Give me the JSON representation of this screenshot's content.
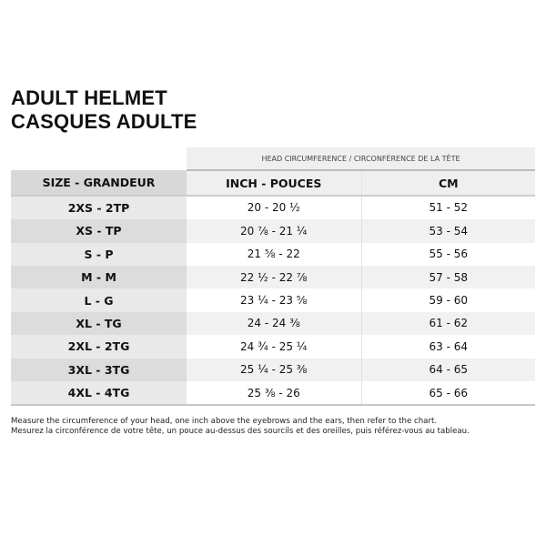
{
  "title": {
    "line1": "ADULT HELMET",
    "line2": "CASQUES ADULTE"
  },
  "table": {
    "group_header": "HEAD CIRCUMFERENCE / CIRCONFÉRENCE DE LA TÊTE",
    "headers": [
      "SIZE - GRANDEUR",
      "INCH - POUCES",
      "CM"
    ],
    "rows": [
      [
        "2XS - 2TP",
        "20 - 20 ½",
        "51 - 52"
      ],
      [
        "XS - TP",
        "20 ⅞ - 21 ¼",
        "53 - 54"
      ],
      [
        "S - P",
        "21 ⅝ - 22",
        "55 - 56"
      ],
      [
        "M - M",
        "22 ½ - 22 ⅞",
        "57 - 58"
      ],
      [
        "L - G",
        "23 ¼ - 23 ⅝",
        "59 - 60"
      ],
      [
        "XL - TG",
        "24 - 24 ⅜",
        "61 - 62"
      ],
      [
        "2XL - 2TG",
        "24 ¾ - 25 ¼",
        "63 - 64"
      ],
      [
        "3XL - 3TG",
        "25 ¼ - 25 ⅜",
        "64 - 65"
      ],
      [
        "4XL - 4TG",
        "25 ⅜ - 26",
        "65 - 66"
      ]
    ]
  },
  "note": {
    "en": "Measure the circumference of your head, one inch above the eyebrows and the ears, then refer to the chart.",
    "fr": "Mesurez la circonférence de votre tête, un pouce au-dessus des sourcils et des oreilles, puis référez-vous au tableau."
  }
}
